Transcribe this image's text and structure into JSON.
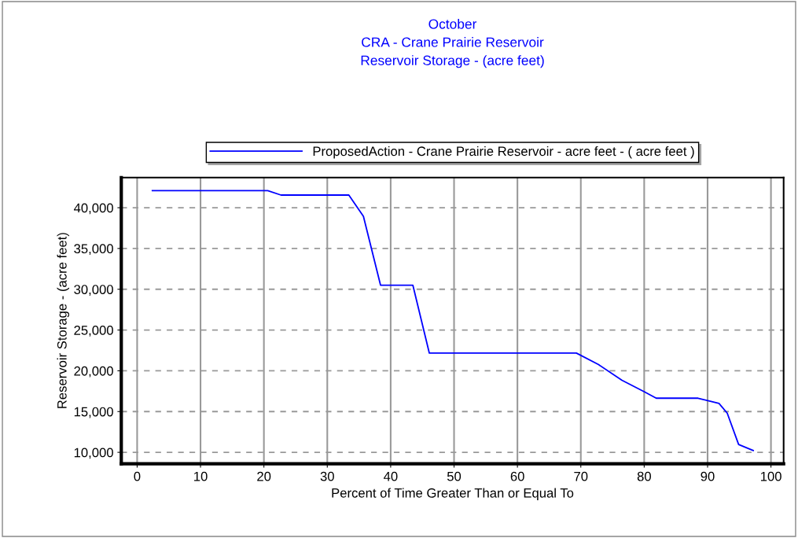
{
  "chart_data": {
    "type": "line",
    "title": "October\nCRA - Crane Prairie Reservoir\nReservoir Storage - (acre feet)",
    "xlabel": "Percent of Time Greater Than or Equal To",
    "ylabel": "Reservoir Storage - (acre feet)",
    "series": [
      {
        "name": "ProposedAction - Crane Prairie Reservoir - acre feet - ( acre feet )",
        "color": "#0000ff",
        "x": [
          2.4,
          20.6,
          22.7,
          33.4,
          35.7,
          38.4,
          43.5,
          46.1,
          69.3,
          72.8,
          76.5,
          80.0,
          81.9,
          88.5,
          91.8,
          93.1,
          94.9,
          97.2
        ],
        "values": [
          42100,
          42100,
          41550,
          41550,
          38950,
          30500,
          30500,
          22170,
          22170,
          20760,
          18830,
          17440,
          16640,
          16640,
          16000,
          14810,
          10960,
          10220
        ]
      }
    ],
    "xlim": [
      -2.5,
      102
    ],
    "ylim": [
      8600,
      43700
    ],
    "xticks": [
      0,
      10,
      20,
      30,
      40,
      50,
      60,
      70,
      80,
      90,
      100
    ],
    "yticks": [
      {
        "value": 10000,
        "label": "10,000"
      },
      {
        "value": 15000,
        "label": "15,000"
      },
      {
        "value": 20000,
        "label": "20,000"
      },
      {
        "value": 25000,
        "label": "25,000"
      },
      {
        "value": 30000,
        "label": "30,000"
      },
      {
        "value": 35000,
        "label": "35,000"
      },
      {
        "value": 40000,
        "label": "40,000"
      }
    ],
    "grid": true,
    "legend": "top",
    "marker": "none",
    "line_style": "solid"
  }
}
